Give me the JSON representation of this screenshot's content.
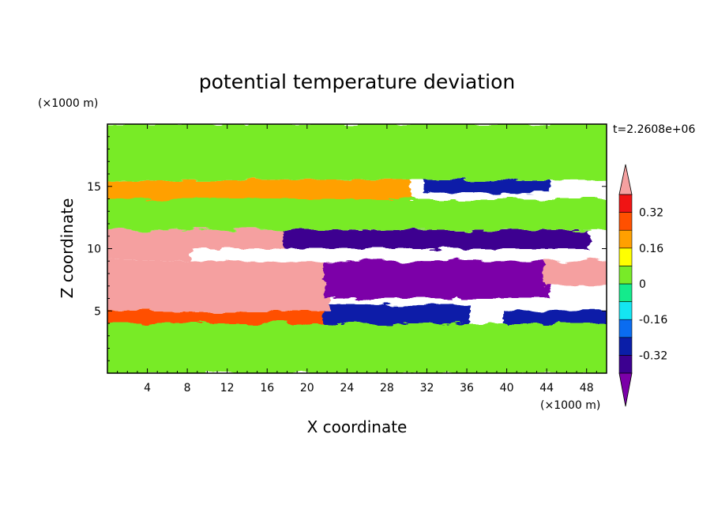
{
  "chart_data": {
    "type": "heatmap",
    "title": "potential temperature deviation",
    "xlabel": "X coordinate",
    "ylabel": "Z coordinate",
    "x_unit": "(×1000 m)",
    "y_unit": "(×1000 m)",
    "time_label": "t=2.2608e+06",
    "xlim": [
      0,
      50
    ],
    "ylim": [
      0,
      20
    ],
    "x_ticks": [
      4,
      8,
      12,
      16,
      20,
      24,
      28,
      32,
      36,
      40,
      44,
      48
    ],
    "y_ticks": [
      5,
      10,
      15
    ],
    "colorbar": {
      "levels": [
        -0.4,
        -0.32,
        -0.24,
        -0.16,
        -0.08,
        0,
        0.08,
        0.16,
        0.24,
        0.32,
        0.4
      ],
      "colors": [
        "#7b00a8",
        "#3c0090",
        "#0a1ea8",
        "#0a6cf0",
        "#14e6f2",
        "#14eb8c",
        "#78eb28",
        "#ffff00",
        "#ffa000",
        "#ff5000",
        "#f01414",
        "#f5a0a0"
      ],
      "tick_labels": [
        "0.32",
        "0.16",
        "0",
        "-0.16",
        "-0.32"
      ],
      "tick_values": [
        0.32,
        0.16,
        0,
        -0.16,
        -0.32
      ]
    },
    "regions": [
      {
        "x": [
          0,
          50
        ],
        "z": [
          0,
          4
        ],
        "value": 0.02
      },
      {
        "x": [
          0,
          24
        ],
        "z": [
          4,
          5
        ],
        "value": 0.3
      },
      {
        "x": [
          22,
          36
        ],
        "z": [
          4,
          5.5
        ],
        "value": -0.32
      },
      {
        "x": [
          40,
          50
        ],
        "z": [
          4,
          5
        ],
        "value": -0.3
      },
      {
        "x": [
          0,
          22
        ],
        "z": [
          5,
          9
        ],
        "value": 0.45
      },
      {
        "x": [
          0,
          8
        ],
        "z": [
          9,
          11.5
        ],
        "value": 0.45
      },
      {
        "x": [
          8,
          18
        ],
        "z": [
          10,
          11.5
        ],
        "value": 0.45
      },
      {
        "x": [
          22,
          44
        ],
        "z": [
          6,
          9
        ],
        "value": -0.45
      },
      {
        "x": [
          44,
          50
        ],
        "z": [
          7,
          9
        ],
        "value": 0.45
      },
      {
        "x": [
          18,
          48
        ],
        "z": [
          10,
          11.5
        ],
        "value": -0.35
      },
      {
        "x": [
          0,
          50
        ],
        "z": [
          11.5,
          14
        ],
        "value": 0.04
      },
      {
        "x": [
          0,
          30
        ],
        "z": [
          14,
          15.5
        ],
        "value": 0.2
      },
      {
        "x": [
          32,
          44
        ],
        "z": [
          14.5,
          15.5
        ],
        "value": -0.3
      },
      {
        "x": [
          0,
          50
        ],
        "z": [
          15.5,
          20
        ],
        "value": 0.0
      }
    ]
  }
}
